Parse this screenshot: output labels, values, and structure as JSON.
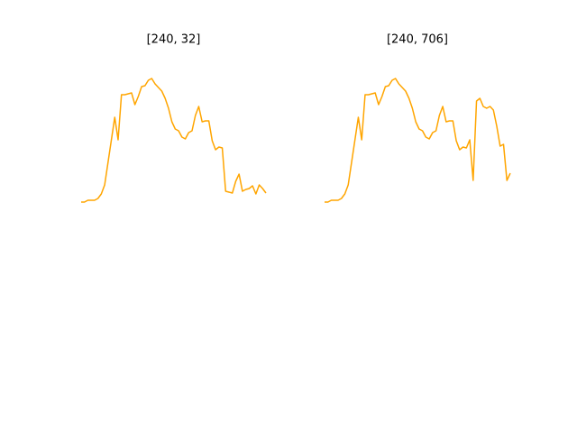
{
  "chart_data": [
    {
      "type": "line",
      "title": "[240, 32]",
      "color": "#ffa500",
      "ylim": [
        0,
        144
      ],
      "values": [
        0,
        0,
        2,
        2,
        2,
        4,
        9,
        19,
        44,
        69,
        94,
        69,
        119,
        119,
        120,
        121,
        108,
        117,
        128,
        129,
        135,
        137,
        131,
        127,
        123,
        115,
        104,
        89,
        81,
        79,
        72,
        70,
        77,
        79,
        96,
        106,
        89,
        90,
        90,
        68,
        58,
        61,
        60,
        12,
        11,
        10,
        23,
        31,
        12,
        14,
        15,
        18,
        9,
        19,
        15,
        10
      ]
    },
    {
      "type": "line",
      "title": "[240, 706]",
      "color": "#ffa500",
      "ylim": [
        0,
        144
      ],
      "values": [
        0,
        0,
        2,
        2,
        2,
        4,
        9,
        19,
        44,
        69,
        94,
        69,
        119,
        119,
        120,
        121,
        108,
        117,
        128,
        129,
        135,
        137,
        131,
        127,
        123,
        115,
        104,
        89,
        81,
        79,
        72,
        70,
        77,
        79,
        96,
        106,
        89,
        90,
        90,
        68,
        58,
        61,
        60,
        69,
        24,
        112,
        115,
        106,
        104,
        106,
        102,
        84,
        62,
        64,
        24,
        32
      ]
    }
  ]
}
